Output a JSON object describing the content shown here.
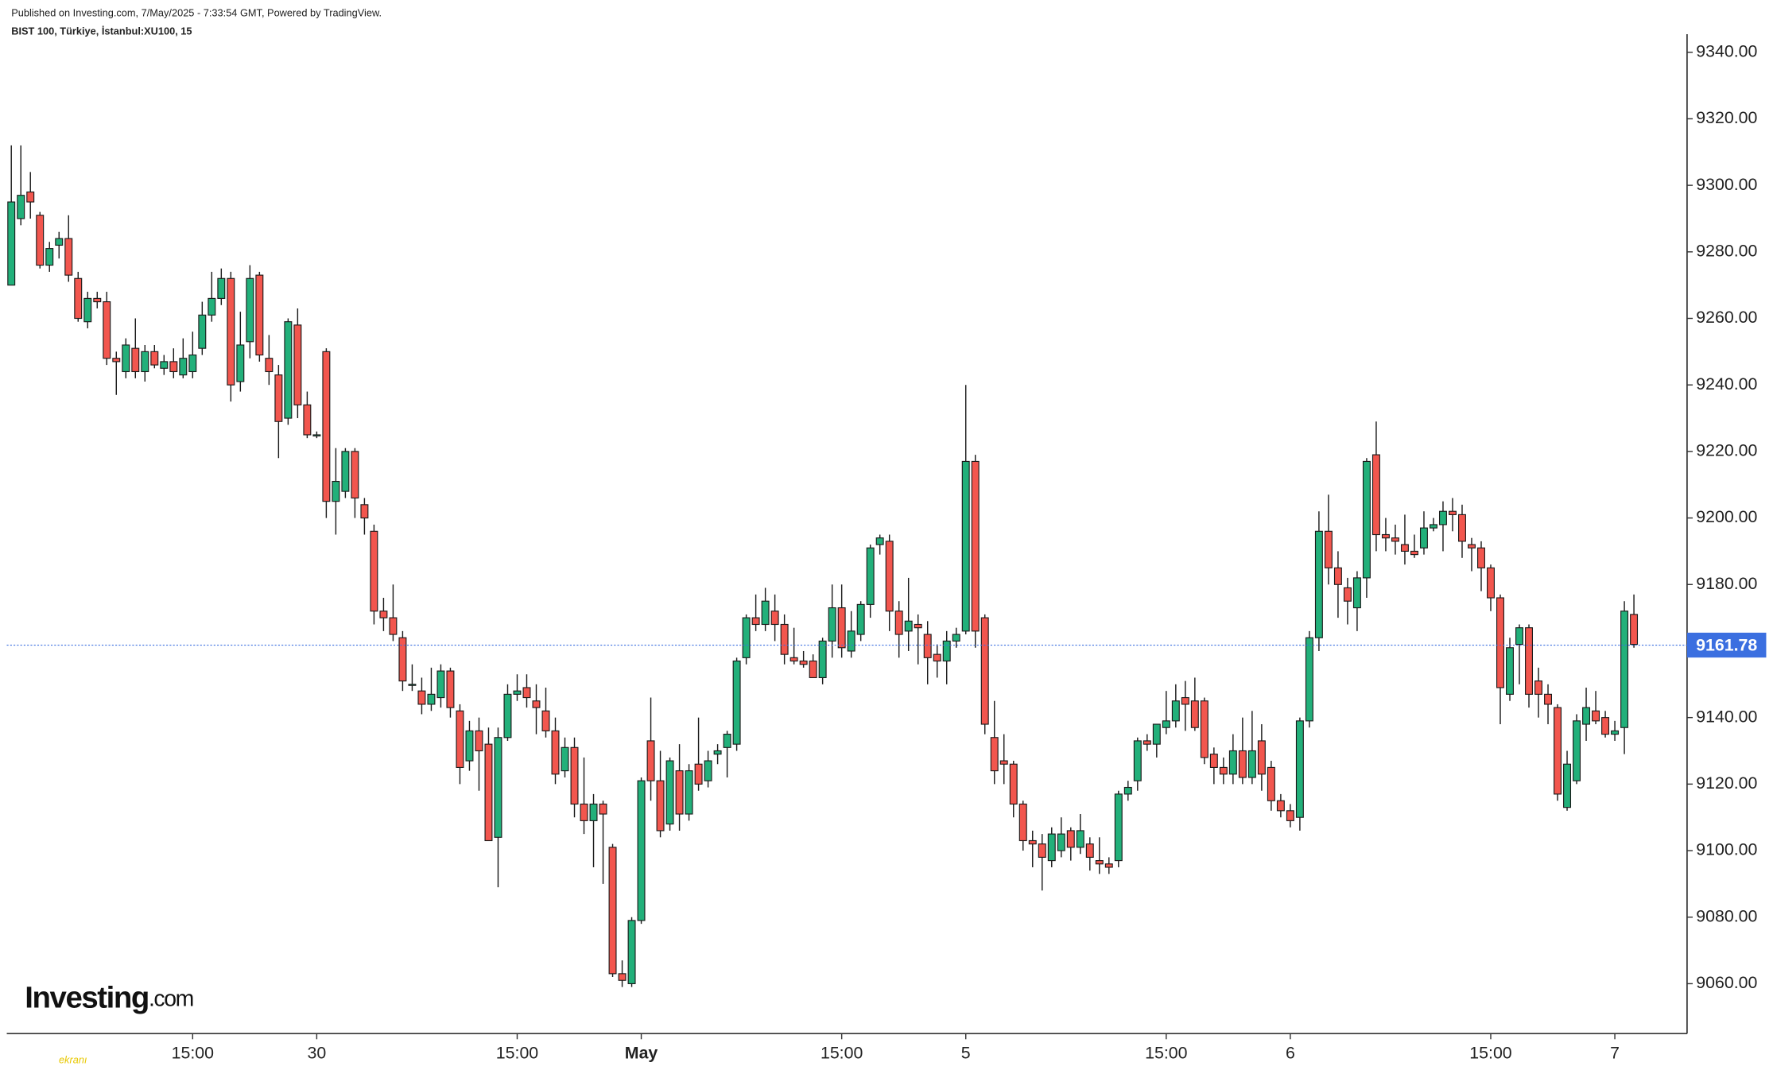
{
  "chart_data": {
    "type": "candlestick",
    "header": "Published on Investing.com, 7/May/2025 - 7:33:54 GMT, Powered by TradingView.",
    "title": "BIST 100, Türkiye, İstanbul:XU100, 15",
    "logo": {
      "brand": "Investing",
      "suffix": ".com"
    },
    "watermark": "ekranı",
    "up_color": "#22b07a",
    "down_color": "#f2564e",
    "outline_color": "#1a1a1a",
    "ylim": [
      9045,
      9345
    ],
    "yticks": [
      {
        "value": 9060,
        "label": "9060.00"
      },
      {
        "value": 9080,
        "label": "9080.00"
      },
      {
        "value": 9100,
        "label": "9100.00"
      },
      {
        "value": 9120,
        "label": "9120.00"
      },
      {
        "value": 9140,
        "label": "9140.00"
      },
      {
        "value": 9160,
        "label": "9160.00"
      },
      {
        "value": 9180,
        "label": "9180.00"
      },
      {
        "value": 9200,
        "label": "9200.00"
      },
      {
        "value": 9220,
        "label": "9220.00"
      },
      {
        "value": 9240,
        "label": "9240.00"
      },
      {
        "value": 9260,
        "label": "9260.00"
      },
      {
        "value": 9280,
        "label": "9280.00"
      },
      {
        "value": 9300,
        "label": "9300.00"
      },
      {
        "value": 9320,
        "label": "9320.00"
      },
      {
        "value": 9340,
        "label": "9340.00"
      }
    ],
    "xticks": [
      {
        "value": 19,
        "label": "15:00"
      },
      {
        "value": 32,
        "label": "30"
      },
      {
        "value": 53,
        "label": "15:00"
      },
      {
        "value": 66,
        "label": "May",
        "bold": true
      },
      {
        "value": 87,
        "label": "15:00"
      },
      {
        "value": 100,
        "label": "5"
      },
      {
        "value": 121,
        "label": "15:00"
      },
      {
        "value": 134,
        "label": "6"
      },
      {
        "value": 155,
        "label": "15:00"
      },
      {
        "value": 168,
        "label": "7"
      }
    ],
    "last_price": {
      "value": 9161.78,
      "label": "9161.78",
      "color": "#3b6fe0"
    },
    "candles": [
      [
        9270,
        9312,
        9270,
        9295
      ],
      [
        9290,
        9312,
        9288,
        9297
      ],
      [
        9298,
        9304,
        9290,
        9295
      ],
      [
        9291,
        9292,
        9275,
        9276
      ],
      [
        9276,
        9283,
        9274,
        9281
      ],
      [
        9282,
        9286,
        9278,
        9284
      ],
      [
        9284,
        9291,
        9271,
        9273
      ],
      [
        9272,
        9274,
        9259,
        9260
      ],
      [
        9259,
        9268,
        9257,
        9266
      ],
      [
        9266,
        9268,
        9263,
        9265
      ],
      [
        9265,
        9268,
        9246,
        9248
      ],
      [
        9248,
        9250,
        9237,
        9247
      ],
      [
        9244,
        9254,
        9242,
        9252
      ],
      [
        9251,
        9260,
        9242,
        9244
      ],
      [
        9244,
        9252,
        9241,
        9250
      ],
      [
        9250,
        9252,
        9245,
        9246
      ],
      [
        9245,
        9249,
        9243,
        9247
      ],
      [
        9247,
        9251,
        9242,
        9244
      ],
      [
        9243,
        9254,
        9242,
        9248
      ],
      [
        9244,
        9256,
        9242,
        9249
      ],
      [
        9251,
        9265,
        9249,
        9261
      ],
      [
        9261,
        9274,
        9259,
        9266
      ],
      [
        9266,
        9275,
        9264,
        9272
      ],
      [
        9272,
        9274,
        9235,
        9240
      ],
      [
        9241,
        9262,
        9238,
        9252
      ],
      [
        9253,
        9276,
        9248,
        9272
      ],
      [
        9273,
        9274,
        9247,
        9249
      ],
      [
        9248,
        9255,
        9240,
        9244
      ],
      [
        9243,
        9246,
        9218,
        9229
      ],
      [
        9230,
        9260,
        9228,
        9259
      ],
      [
        9258,
        9263,
        9230,
        9234
      ],
      [
        9234,
        9238,
        9224,
        9225
      ],
      [
        9225,
        9226,
        9224,
        9225
      ],
      [
        9250,
        9251,
        9200,
        9205
      ],
      [
        9205,
        9221,
        9195,
        9211
      ],
      [
        9208,
        9221,
        9206,
        9220
      ],
      [
        9220,
        9221,
        9200,
        9206
      ],
      [
        9204,
        9206,
        9195,
        9200
      ],
      [
        9196,
        9198,
        9168,
        9172
      ],
      [
        9172,
        9176,
        9166,
        9170
      ],
      [
        9170,
        9180,
        9163,
        9165
      ],
      [
        9164,
        9166,
        9148,
        9151
      ],
      [
        9150,
        9156,
        9148,
        9150
      ],
      [
        9148,
        9152,
        9141,
        9144
      ],
      [
        9144,
        9155,
        9142,
        9147
      ],
      [
        9146,
        9156,
        9143,
        9154
      ],
      [
        9154,
        9155,
        9140,
        9143
      ],
      [
        9142,
        9144,
        9120,
        9125
      ],
      [
        9127,
        9139,
        9124,
        9136
      ],
      [
        9136,
        9140,
        9118,
        9130
      ],
      [
        9132,
        9137,
        9103,
        9103
      ],
      [
        9104,
        9137,
        9089,
        9134
      ],
      [
        9134,
        9150,
        9133,
        9147
      ],
      [
        9147,
        9153,
        9145,
        9148
      ],
      [
        9149,
        9153,
        9143,
        9146
      ],
      [
        9145,
        9150,
        9135,
        9143
      ],
      [
        9142,
        9149,
        9134,
        9136
      ],
      [
        9136,
        9140,
        9120,
        9123
      ],
      [
        9124,
        9134,
        9122,
        9131
      ],
      [
        9131,
        9134,
        9110,
        9114
      ],
      [
        9114,
        9128,
        9105,
        9109
      ],
      [
        9109,
        9117,
        9095,
        9114
      ],
      [
        9114,
        9115,
        9090,
        9111
      ],
      [
        9101,
        9102,
        9062,
        9063
      ],
      [
        9063,
        9067,
        9059,
        9061
      ],
      [
        9060,
        9080,
        9059,
        9079
      ],
      [
        9079,
        9122,
        9078,
        9121
      ],
      [
        9133,
        9146,
        9115,
        9121
      ],
      [
        9121,
        9130,
        9104,
        9106
      ],
      [
        9108,
        9128,
        9106,
        9127
      ],
      [
        9124,
        9132,
        9106,
        9111
      ],
      [
        9111,
        9126,
        9109,
        9124
      ],
      [
        9126,
        9140,
        9118,
        9120
      ],
      [
        9121,
        9130,
        9119,
        9127
      ],
      [
        9129,
        9132,
        9126,
        9130
      ],
      [
        9131,
        9136,
        9122,
        9135
      ],
      [
        9132,
        9158,
        9130,
        9157
      ],
      [
        9158,
        9171,
        9156,
        9170
      ],
      [
        9170,
        9177,
        9166,
        9168
      ],
      [
        9168,
        9179,
        9166,
        9175
      ],
      [
        9172,
        9177,
        9163,
        9168
      ],
      [
        9168,
        9171,
        9156,
        9159
      ],
      [
        9158,
        9167,
        9156,
        9157
      ],
      [
        9157,
        9160,
        9155,
        9156
      ],
      [
        9157,
        9159,
        9152,
        9152
      ],
      [
        9152,
        9164,
        9150,
        9163
      ],
      [
        9163,
        9180,
        9158,
        9173
      ],
      [
        9173,
        9180,
        9158,
        9161
      ],
      [
        9160,
        9172,
        9158,
        9166
      ],
      [
        9165,
        9175,
        9163,
        9174
      ],
      [
        9174,
        9192,
        9170,
        9191
      ],
      [
        9192,
        9195,
        9189,
        9194
      ],
      [
        9193,
        9195,
        9166,
        9172
      ],
      [
        9172,
        9175,
        9158,
        9165
      ],
      [
        9166,
        9182,
        9160,
        9169
      ],
      [
        9168,
        9171,
        9156,
        9167
      ],
      [
        9165,
        9169,
        9150,
        9158
      ],
      [
        9159,
        9162,
        9152,
        9157
      ],
      [
        9157,
        9166,
        9150,
        9163
      ],
      [
        9163,
        9167,
        9161,
        9165
      ],
      [
        9166,
        9240,
        9165,
        9217
      ],
      [
        9217,
        9219,
        9161,
        9166
      ],
      [
        9170,
        9171,
        9135,
        9138
      ],
      [
        9134,
        9145,
        9120,
        9124
      ],
      [
        9127,
        9135,
        9120,
        9126
      ],
      [
        9126,
        9127,
        9110,
        9114
      ],
      [
        9114,
        9115,
        9100,
        9103
      ],
      [
        9103,
        9106,
        9095,
        9102
      ],
      [
        9102,
        9105,
        9088,
        9098
      ],
      [
        9097,
        9107,
        9095,
        9105
      ],
      [
        9100,
        9110,
        9098,
        9105
      ],
      [
        9106,
        9107,
        9097,
        9101
      ],
      [
        9101,
        9111,
        9099,
        9106
      ],
      [
        9102,
        9104,
        9094,
        9098
      ],
      [
        9097,
        9104,
        9093,
        9096
      ],
      [
        9096,
        9098,
        9093,
        9095
      ],
      [
        9097,
        9118,
        9095,
        9117
      ],
      [
        9117,
        9121,
        9115,
        9119
      ],
      [
        9121,
        9134,
        9118,
        9133
      ],
      [
        9133,
        9135,
        9130,
        9132
      ],
      [
        9132,
        9138,
        9128,
        9138
      ],
      [
        9137,
        9148,
        9135,
        9139
      ],
      [
        9139,
        9150,
        9137,
        9145
      ],
      [
        9146,
        9151,
        9136,
        9144
      ],
      [
        9145,
        9152,
        9136,
        9137
      ],
      [
        9145,
        9146,
        9126,
        9128
      ],
      [
        9129,
        9131,
        9120,
        9125
      ],
      [
        9125,
        9128,
        9120,
        9123
      ],
      [
        9123,
        9135,
        9120,
        9130
      ],
      [
        9130,
        9140,
        9120,
        9122
      ],
      [
        9122,
        9142,
        9120,
        9130
      ],
      [
        9133,
        9138,
        9118,
        9123
      ],
      [
        9125,
        9127,
        9112,
        9115
      ],
      [
        9115,
        9117,
        9110,
        9112
      ],
      [
        9112,
        9114,
        9107,
        9109
      ],
      [
        9110,
        9140,
        9106,
        9139
      ],
      [
        9139,
        9166,
        9137,
        9164
      ],
      [
        9164,
        9202,
        9160,
        9196
      ],
      [
        9196,
        9207,
        9180,
        9185
      ],
      [
        9185,
        9190,
        9170,
        9180
      ],
      [
        9179,
        9182,
        9168,
        9175
      ],
      [
        9173,
        9184,
        9166,
        9182
      ],
      [
        9182,
        9218,
        9176,
        9217
      ],
      [
        9219,
        9229,
        9190,
        9195
      ],
      [
        9195,
        9200,
        9190,
        9194
      ],
      [
        9194,
        9198,
        9189,
        9193
      ],
      [
        9192,
        9201,
        9186,
        9190
      ],
      [
        9190,
        9195,
        9188,
        9189
      ],
      [
        9191,
        9202,
        9189,
        9197
      ],
      [
        9197,
        9200,
        9196,
        9198
      ],
      [
        9198,
        9205,
        9190,
        9202
      ],
      [
        9202,
        9206,
        9196,
        9201
      ],
      [
        9201,
        9204,
        9188,
        9193
      ],
      [
        9192,
        9194,
        9184,
        9191
      ],
      [
        9191,
        9193,
        9178,
        9185
      ],
      [
        9185,
        9186,
        9172,
        9176
      ],
      [
        9176,
        9177,
        9138,
        9149
      ],
      [
        9147,
        9164,
        9145,
        9161
      ],
      [
        9162,
        9168,
        9150,
        9167
      ],
      [
        9167,
        9168,
        9143,
        9147
      ],
      [
        9151,
        9155,
        9140,
        9147
      ],
      [
        9147,
        9150,
        9138,
        9144
      ],
      [
        9143,
        9144,
        9115,
        9117
      ],
      [
        9113,
        9130,
        9112,
        9126
      ],
      [
        9121,
        9141,
        9120,
        9139
      ],
      [
        9138,
        9149,
        9133,
        9143
      ],
      [
        9142,
        9148,
        9138,
        9139
      ],
      [
        9140,
        9142,
        9134,
        9135
      ],
      [
        9135,
        9139,
        9133,
        9136
      ],
      [
        9137,
        9175,
        9129,
        9172
      ],
      [
        9171,
        9177,
        9161,
        9162
      ]
    ]
  }
}
